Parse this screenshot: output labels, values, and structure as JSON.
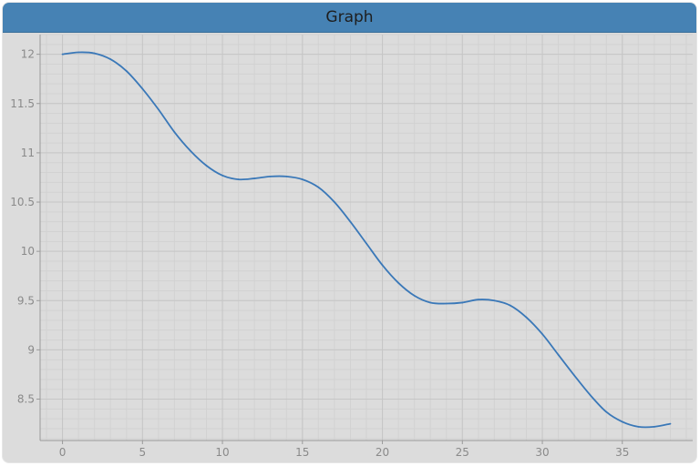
{
  "window": {
    "title": "Graph"
  },
  "colors": {
    "titlebar": "#4682b4",
    "plot_background": "#dcdcdc",
    "line": "#3a78b8",
    "grid_major": "#c6c6c6",
    "grid_minor": "#d2d2d2",
    "axis": "#9a9a9a",
    "tick_label": "#8a8a8a"
  },
  "chart_data": {
    "type": "line",
    "title": "",
    "xlabel": "",
    "ylabel": "",
    "xlim": [
      -1.4,
      39.4
    ],
    "ylim": [
      8.08,
      12.2
    ],
    "x_ticks": [
      0,
      5,
      10,
      15,
      20,
      25,
      30,
      35
    ],
    "y_ticks": [
      8.5,
      9,
      9.5,
      10,
      10.5,
      11,
      11.5,
      12
    ],
    "x_tick_labels": [
      "0",
      "5",
      "10",
      "15",
      "20",
      "25",
      "30",
      "35"
    ],
    "y_tick_labels": [
      "8.5",
      "9",
      "9.5",
      "10",
      "10.5",
      "11",
      "11.5",
      "12"
    ],
    "grid": true,
    "legend": "none",
    "series": [
      {
        "x": [
          0,
          1,
          2,
          3,
          4,
          5,
          6,
          7,
          8,
          9,
          10,
          11,
          12,
          13,
          14,
          15,
          16,
          17,
          18,
          19,
          20,
          21,
          22,
          23,
          24,
          25,
          26,
          27,
          28,
          29,
          30,
          31,
          32,
          33,
          34,
          35,
          36,
          37,
          38
        ],
        "values": [
          12.0,
          12.02,
          12.01,
          11.95,
          11.83,
          11.65,
          11.44,
          11.21,
          11.02,
          10.87,
          10.77,
          10.73,
          10.74,
          10.76,
          10.76,
          10.73,
          10.65,
          10.5,
          10.3,
          10.08,
          9.86,
          9.68,
          9.55,
          9.48,
          9.47,
          9.48,
          9.51,
          9.5,
          9.45,
          9.33,
          9.16,
          8.95,
          8.74,
          8.54,
          8.37,
          8.27,
          8.22,
          8.22,
          8.25
        ]
      }
    ]
  }
}
